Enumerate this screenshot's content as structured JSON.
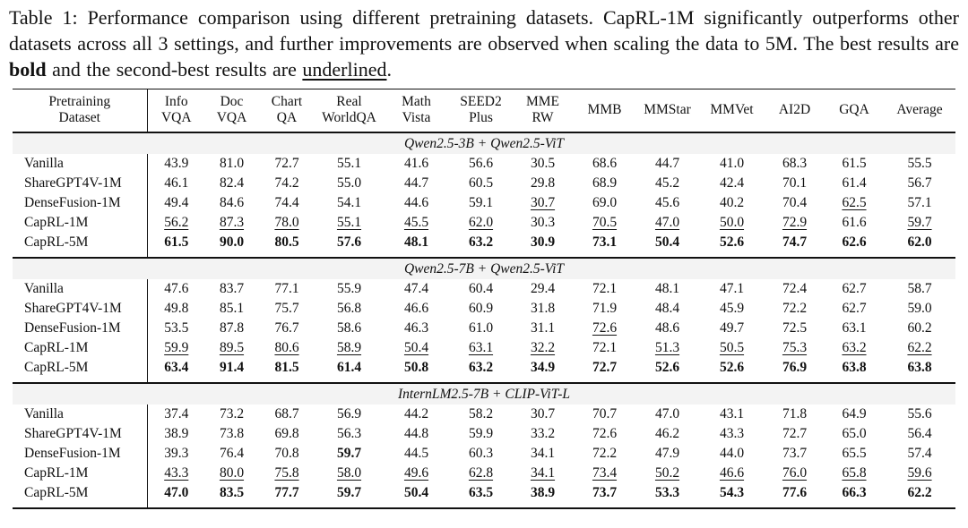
{
  "caption": {
    "parts": [
      {
        "text": "Table 1: Performance comparison using different pretraining datasets. CapRL-1M significantly outperforms other datasets across all 3 settings, and further improvements are observed when scaling the data to 5M. The best results are "
      },
      {
        "text": "bold"
      },
      {
        "text": " and the second-best results are "
      },
      {
        "text": "underlined"
      },
      {
        "text": "."
      }
    ]
  },
  "colors": {
    "band_background": "#f3f3f3",
    "rule": "#111111",
    "text": "#111111"
  },
  "table": {
    "row_header": {
      "line1": "Pretraining",
      "line2": "Dataset"
    },
    "columns": [
      {
        "l1": "Info",
        "l2": "VQA"
      },
      {
        "l1": "Doc",
        "l2": "VQA"
      },
      {
        "l1": "Chart",
        "l2": "QA"
      },
      {
        "l1": "Real",
        "l2": "WorldQA"
      },
      {
        "l1": "Math",
        "l2": "Vista"
      },
      {
        "l1": "SEED2",
        "l2": "Plus"
      },
      {
        "l1": "MME",
        "l2": "RW"
      },
      {
        "l1": "MMB",
        "l2": ""
      },
      {
        "l1": "MMStar",
        "l2": ""
      },
      {
        "l1": "MMVet",
        "l2": ""
      },
      {
        "l1": "AI2D",
        "l2": ""
      },
      {
        "l1": "GQA",
        "l2": ""
      },
      {
        "l1": "Average",
        "l2": ""
      }
    ],
    "legend": {
      "best": "bold",
      "second_best": "underlined"
    },
    "sections": [
      {
        "title": "Qwen2.5-3B + Qwen2.5-ViT",
        "rows": [
          {
            "label": "Vanilla",
            "values": [
              "43.9",
              "81.0",
              "72.7",
              "55.1",
              "41.6",
              "56.6",
              "30.5",
              "68.6",
              "44.7",
              "41.0",
              "68.3",
              "61.5",
              "55.5"
            ]
          },
          {
            "label": "ShareGPT4V-1M",
            "values": [
              "46.1",
              "82.4",
              "74.2",
              "55.0",
              "44.7",
              "60.5",
              "29.8",
              "68.9",
              "45.2",
              "42.4",
              "70.1",
              "61.4",
              "56.7"
            ]
          },
          {
            "label": "DenseFusion-1M",
            "values": [
              "49.4",
              "84.6",
              "74.4",
              "54.1",
              "44.6",
              "59.1",
              "u:30.7",
              "69.0",
              "45.6",
              "40.2",
              "70.4",
              "u:62.5",
              "57.1"
            ]
          },
          {
            "label": "CapRL-1M",
            "values": [
              "u:56.2",
              "u:87.3",
              "u:78.0",
              "u:55.1",
              "u:45.5",
              "u:62.0",
              "30.3",
              "u:70.5",
              "u:47.0",
              "u:50.0",
              "u:72.9",
              "61.6",
              "u:59.7"
            ]
          },
          {
            "label": "CapRL-5M",
            "values": [
              "b:61.5",
              "b:90.0",
              "b:80.5",
              "b:57.6",
              "b:48.1",
              "b:63.2",
              "b:30.9",
              "b:73.1",
              "b:50.4",
              "b:52.6",
              "b:74.7",
              "b:62.6",
              "b:62.0"
            ]
          }
        ]
      },
      {
        "title": "Qwen2.5-7B + Qwen2.5-ViT",
        "rows": [
          {
            "label": "Vanilla",
            "values": [
              "47.6",
              "83.7",
              "77.1",
              "55.9",
              "47.4",
              "60.4",
              "29.4",
              "72.1",
              "48.1",
              "47.1",
              "72.4",
              "62.7",
              "58.7"
            ]
          },
          {
            "label": "ShareGPT4V-1M",
            "values": [
              "49.8",
              "85.1",
              "75.7",
              "56.8",
              "46.6",
              "60.9",
              "31.8",
              "71.9",
              "48.4",
              "45.9",
              "72.2",
              "62.7",
              "59.0"
            ]
          },
          {
            "label": "DenseFusion-1M",
            "values": [
              "53.5",
              "87.8",
              "76.7",
              "58.6",
              "46.3",
              "61.0",
              "31.1",
              "u:72.6",
              "48.6",
              "49.7",
              "72.5",
              "63.1",
              "60.2"
            ]
          },
          {
            "label": "CapRL-1M",
            "values": [
              "u:59.9",
              "u:89.5",
              "u:80.6",
              "u:58.9",
              "u:50.4",
              "u:63.1",
              "u:32.2",
              "72.1",
              "u:51.3",
              "u:50.5",
              "u:75.3",
              "u:63.2",
              "u:62.2"
            ]
          },
          {
            "label": "CapRL-5M",
            "values": [
              "b:63.4",
              "b:91.4",
              "b:81.5",
              "b:61.4",
              "b:50.8",
              "b:63.2",
              "b:34.9",
              "b:72.7",
              "b:52.6",
              "b:52.6",
              "b:76.9",
              "b:63.8",
              "b:63.8"
            ]
          }
        ]
      },
      {
        "title": "InternLM2.5-7B + CLIP-ViT-L",
        "rows": [
          {
            "label": "Vanilla",
            "values": [
              "37.4",
              "73.2",
              "68.7",
              "56.9",
              "44.2",
              "58.2",
              "30.7",
              "70.7",
              "47.0",
              "43.1",
              "71.8",
              "64.9",
              "55.6"
            ]
          },
          {
            "label": "ShareGPT4V-1M",
            "values": [
              "38.9",
              "73.8",
              "69.8",
              "56.3",
              "44.8",
              "59.9",
              "33.2",
              "72.6",
              "46.2",
              "43.3",
              "72.7",
              "65.0",
              "56.4"
            ]
          },
          {
            "label": "DenseFusion-1M",
            "values": [
              "39.3",
              "76.4",
              "70.8",
              "b:59.7",
              "44.5",
              "60.3",
              "34.1",
              "72.2",
              "47.9",
              "44.0",
              "73.7",
              "65.5",
              "57.4"
            ]
          },
          {
            "label": "CapRL-1M",
            "values": [
              "u:43.3",
              "u:80.0",
              "u:75.8",
              "u:58.0",
              "u:49.6",
              "u:62.8",
              "u:34.1",
              "u:73.4",
              "u:50.2",
              "u:46.6",
              "u:76.0",
              "u:65.8",
              "u:59.6"
            ]
          },
          {
            "label": "CapRL-5M",
            "values": [
              "b:47.0",
              "b:83.5",
              "b:77.7",
              "b:59.7",
              "b:50.4",
              "b:63.5",
              "b:38.9",
              "b:73.7",
              "b:53.3",
              "b:54.3",
              "b:77.6",
              "b:66.3",
              "b:62.2"
            ]
          }
        ]
      }
    ]
  }
}
